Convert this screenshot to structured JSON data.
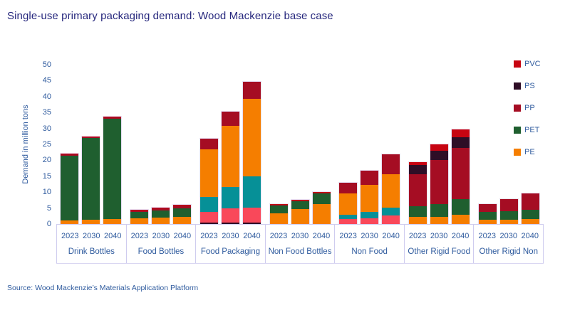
{
  "chart_data": {
    "type": "bar",
    "stacked": true,
    "title": "Single-use primary packaging demand: Wood Mackenzie base case",
    "ylabel": "Demand in million tons",
    "xlabel": "",
    "ylim": [
      0,
      50
    ],
    "yticks": [
      0,
      5,
      10,
      15,
      20,
      25,
      30,
      35,
      40,
      45,
      50
    ],
    "grid": false,
    "source": "Source: Wood Mackenzie’s Materials Application Platform",
    "legend": {
      "position": "top-right",
      "entries": [
        {
          "id": "PVC",
          "label": "PVC"
        },
        {
          "id": "PS",
          "label": "PS"
        },
        {
          "id": "PP",
          "label": "PP"
        },
        {
          "id": "PET",
          "label": "PET"
        },
        {
          "id": "PE",
          "label": "PE"
        }
      ]
    },
    "series_colors": {
      "PE": "#f57e00",
      "PET": "#1f5f2f",
      "PP": "#a50d23",
      "PS": "#2e0e26",
      "PVC": "#c70411",
      "TEAL": "#069097",
      "PINK": "#f9485a"
    },
    "note": "TEAL and PINK segments appear in bars but their legend entries are not visible in the image",
    "years": [
      "2023",
      "2030",
      "2040"
    ],
    "groups": [
      {
        "label": "Drink Bottles",
        "bars": [
          {
            "year": "2023",
            "total": 22.0,
            "segments": [
              [
                "PE",
                1.2
              ],
              [
                "PET",
                20.3
              ],
              [
                "PP",
                0.3
              ],
              [
                "PVC",
                0.2
              ]
            ]
          },
          {
            "year": "2030",
            "total": 27.5,
            "segments": [
              [
                "PE",
                1.4
              ],
              [
                "PET",
                25.6
              ],
              [
                "PP",
                0.3
              ],
              [
                "PVC",
                0.2
              ]
            ]
          },
          {
            "year": "2040",
            "total": 33.7,
            "segments": [
              [
                "PE",
                1.6
              ],
              [
                "PET",
                31.5
              ],
              [
                "PP",
                0.4
              ],
              [
                "PVC",
                0.2
              ]
            ]
          }
        ]
      },
      {
        "label": "Food Bottles",
        "bars": [
          {
            "year": "2023",
            "total": 4.4,
            "segments": [
              [
                "PE",
                1.8
              ],
              [
                "PET",
                1.9
              ],
              [
                "PP",
                0.6
              ],
              [
                "PVC",
                0.1
              ]
            ]
          },
          {
            "year": "2030",
            "total": 5.1,
            "segments": [
              [
                "PE",
                2.0
              ],
              [
                "PET",
                2.2
              ],
              [
                "PP",
                0.8
              ],
              [
                "PVC",
                0.1
              ]
            ]
          },
          {
            "year": "2040",
            "total": 6.1,
            "segments": [
              [
                "PE",
                2.2
              ],
              [
                "PET",
                2.7
              ],
              [
                "PP",
                1.0
              ],
              [
                "PVC",
                0.2
              ]
            ]
          }
        ]
      },
      {
        "label": "Food Packaging",
        "bars": [
          {
            "year": "2023",
            "total": 26.9,
            "segments": [
              [
                "PS",
                0.4
              ],
              [
                "PINK",
                3.3
              ],
              [
                "TEAL",
                4.8
              ],
              [
                "PE",
                14.9
              ],
              [
                "PP",
                3.5
              ]
            ]
          },
          {
            "year": "2030",
            "total": 35.2,
            "segments": [
              [
                "PS",
                0.5
              ],
              [
                "PINK",
                4.5
              ],
              [
                "TEAL",
                6.7
              ],
              [
                "PE",
                19.0
              ],
              [
                "PP",
                4.5
              ]
            ]
          },
          {
            "year": "2040",
            "total": 44.6,
            "segments": [
              [
                "PS",
                0.4
              ],
              [
                "PINK",
                4.8
              ],
              [
                "TEAL",
                9.8
              ],
              [
                "PE",
                24.4
              ],
              [
                "PP",
                5.2
              ]
            ]
          }
        ]
      },
      {
        "label": "Non Food Bottles",
        "bars": [
          {
            "year": "2023",
            "total": 6.2,
            "segments": [
              [
                "PE",
                3.3
              ],
              [
                "PET",
                2.5
              ],
              [
                "PP",
                0.2
              ],
              [
                "PVC",
                0.2
              ]
            ]
          },
          {
            "year": "2030",
            "total": 7.5,
            "segments": [
              [
                "PE",
                4.6
              ],
              [
                "PET",
                2.5
              ],
              [
                "PP",
                0.2
              ],
              [
                "PVC",
                0.2
              ]
            ]
          },
          {
            "year": "2040",
            "total": 10.1,
            "segments": [
              [
                "PE",
                6.3
              ],
              [
                "PET",
                3.2
              ],
              [
                "PP",
                0.3
              ],
              [
                "PVC",
                0.3
              ]
            ]
          }
        ]
      },
      {
        "label": "Non Food",
        "bars": [
          {
            "year": "2023",
            "total": 13.0,
            "segments": [
              [
                "PINK",
                1.5
              ],
              [
                "TEAL",
                1.5
              ],
              [
                "PE",
                6.7
              ],
              [
                "PP",
                3.3
              ]
            ]
          },
          {
            "year": "2030",
            "total": 16.7,
            "segments": [
              [
                "PINK",
                1.7
              ],
              [
                "TEAL",
                2.0
              ],
              [
                "PE",
                8.6
              ],
              [
                "PP",
                4.4
              ]
            ]
          },
          {
            "year": "2040",
            "total": 21.9,
            "segments": [
              [
                "PINK",
                2.6
              ],
              [
                "TEAL",
                2.6
              ],
              [
                "PE",
                10.4
              ],
              [
                "PP",
                6.3
              ]
            ]
          }
        ]
      },
      {
        "label": "Other Rigid Food",
        "bars": [
          {
            "year": "2023",
            "total": 19.4,
            "segments": [
              [
                "PE",
                2.2
              ],
              [
                "PET",
                3.4
              ],
              [
                "PP",
                10.0
              ],
              [
                "PS",
                3.0
              ],
              [
                "PVC",
                0.8
              ]
            ]
          },
          {
            "year": "2030",
            "total": 25.0,
            "segments": [
              [
                "PE",
                2.2
              ],
              [
                "PET",
                4.1
              ],
              [
                "PP",
                13.8
              ],
              [
                "PS",
                2.8
              ],
              [
                "PVC",
                2.1
              ]
            ]
          },
          {
            "year": "2040",
            "total": 29.8,
            "segments": [
              [
                "PE",
                3.0
              ],
              [
                "PET",
                4.8
              ],
              [
                "PP",
                16.0
              ],
              [
                "PS",
                3.4
              ],
              [
                "PVC",
                2.6
              ]
            ]
          }
        ]
      },
      {
        "label": "Other Rigid Non",
        "bars": [
          {
            "year": "2023",
            "total": 6.3,
            "segments": [
              [
                "PE",
                1.3
              ],
              [
                "PET",
                2.4
              ],
              [
                "PP",
                2.6
              ]
            ]
          },
          {
            "year": "2030",
            "total": 7.8,
            "segments": [
              [
                "PE",
                1.3
              ],
              [
                "PET",
                2.8
              ],
              [
                "PP",
                3.7
              ]
            ]
          },
          {
            "year": "2040",
            "total": 9.7,
            "segments": [
              [
                "PE",
                1.6
              ],
              [
                "PET",
                2.9
              ],
              [
                "PP",
                5.2
              ]
            ]
          }
        ]
      }
    ],
    "colors": {
      "title_text": "#26277d",
      "axis_text": "#2f5b9e",
      "axis_line": "#cfccef",
      "background": "#ffffff"
    }
  }
}
